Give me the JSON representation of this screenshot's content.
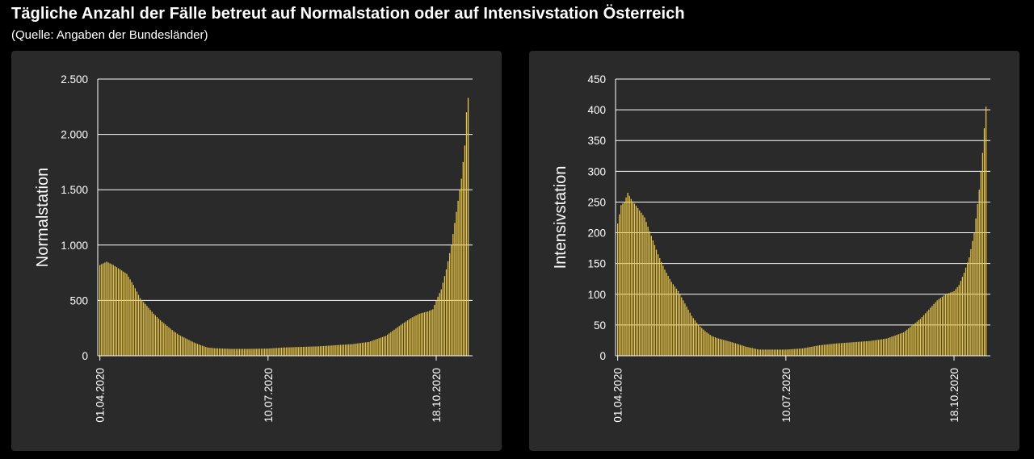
{
  "header": {
    "title": "Tägliche Anzahl der Fälle betreut auf Normalstation oder auf Intensivstation Österreich",
    "subtitle": "(Quelle: Angaben der Bundesländer)"
  },
  "colors": {
    "background": "#000000",
    "panel": "#2a2a2a",
    "bar": "#e8c547",
    "text": "#ffffff"
  },
  "chart_data": [
    {
      "type": "bar",
      "ylabel": "Normalstation",
      "xlabel": "",
      "x_start": "01.04.2020",
      "x_end": "06.11.2020",
      "ylim": [
        0,
        2500
      ],
      "yticks": [
        0,
        500,
        1000,
        1500,
        2000,
        2500
      ],
      "ytick_labels": [
        "0",
        "500",
        "1.000",
        "1.500",
        "2.000",
        "2.500"
      ],
      "xticks": [
        "01.04.2020",
        "10.07.2020",
        "18.10.2020"
      ],
      "grid": "horizontal",
      "anchors": [
        [
          "01.04.2020",
          820
        ],
        [
          "05.04.2020",
          850
        ],
        [
          "09.04.2020",
          820
        ],
        [
          "13.04.2020",
          780
        ],
        [
          "17.04.2020",
          740
        ],
        [
          "21.04.2020",
          640
        ],
        [
          "25.04.2020",
          520
        ],
        [
          "29.04.2020",
          450
        ],
        [
          "03.05.2020",
          380
        ],
        [
          "07.05.2020",
          320
        ],
        [
          "11.05.2020",
          270
        ],
        [
          "15.05.2020",
          220
        ],
        [
          "19.05.2020",
          180
        ],
        [
          "23.05.2020",
          150
        ],
        [
          "27.05.2020",
          120
        ],
        [
          "31.05.2020",
          95
        ],
        [
          "04.06.2020",
          75
        ],
        [
          "08.06.2020",
          68
        ],
        [
          "18.06.2020",
          62
        ],
        [
          "28.06.2020",
          62
        ],
        [
          "10.07.2020",
          65
        ],
        [
          "20.07.2020",
          75
        ],
        [
          "30.07.2020",
          80
        ],
        [
          "09.08.2020",
          85
        ],
        [
          "19.08.2020",
          95
        ],
        [
          "29.08.2020",
          105
        ],
        [
          "08.09.2020",
          125
        ],
        [
          "18.09.2020",
          180
        ],
        [
          "28.09.2020",
          290
        ],
        [
          "03.10.2020",
          340
        ],
        [
          "08.10.2020",
          380
        ],
        [
          "13.10.2020",
          400
        ],
        [
          "16.10.2020",
          420
        ],
        [
          "18.10.2020",
          500
        ],
        [
          "21.10.2020",
          600
        ],
        [
          "24.10.2020",
          780
        ],
        [
          "27.10.2020",
          1000
        ],
        [
          "30.10.2020",
          1300
        ],
        [
          "02.11.2020",
          1600
        ],
        [
          "04.11.2020",
          1900
        ],
        [
          "05.11.2020",
          2200
        ],
        [
          "06.11.2020",
          2330
        ]
      ]
    },
    {
      "type": "bar",
      "ylabel": "Intensivstation",
      "xlabel": "",
      "x_start": "01.04.2020",
      "x_end": "06.11.2020",
      "ylim": [
        0,
        450
      ],
      "yticks": [
        0,
        50,
        100,
        150,
        200,
        250,
        300,
        350,
        400,
        450
      ],
      "ytick_labels": [
        "0",
        "50",
        "100",
        "150",
        "200",
        "250",
        "300",
        "350",
        "400",
        "450"
      ],
      "xticks": [
        "01.04.2020",
        "10.07.2020",
        "18.10.2020"
      ],
      "grid": "horizontal",
      "anchors": [
        [
          "01.04.2020",
          215
        ],
        [
          "03.04.2020",
          245
        ],
        [
          "05.04.2020",
          250
        ],
        [
          "07.04.2020",
          265
        ],
        [
          "09.04.2020",
          255
        ],
        [
          "13.04.2020",
          240
        ],
        [
          "17.04.2020",
          225
        ],
        [
          "21.04.2020",
          195
        ],
        [
          "25.04.2020",
          165
        ],
        [
          "29.04.2020",
          140
        ],
        [
          "03.05.2020",
          120
        ],
        [
          "07.05.2020",
          105
        ],
        [
          "11.05.2020",
          85
        ],
        [
          "15.05.2020",
          65
        ],
        [
          "19.05.2020",
          50
        ],
        [
          "23.05.2020",
          40
        ],
        [
          "27.05.2020",
          32
        ],
        [
          "31.05.2020",
          28
        ],
        [
          "08.06.2020",
          22
        ],
        [
          "16.06.2020",
          15
        ],
        [
          "24.06.2020",
          10
        ],
        [
          "02.07.2020",
          10
        ],
        [
          "10.07.2020",
          10
        ],
        [
          "20.07.2020",
          12
        ],
        [
          "30.07.2020",
          17
        ],
        [
          "09.08.2020",
          20
        ],
        [
          "19.08.2020",
          22
        ],
        [
          "29.08.2020",
          24
        ],
        [
          "08.09.2020",
          28
        ],
        [
          "18.09.2020",
          38
        ],
        [
          "28.09.2020",
          60
        ],
        [
          "03.10.2020",
          75
        ],
        [
          "08.10.2020",
          90
        ],
        [
          "13.10.2020",
          100
        ],
        [
          "18.10.2020",
          105
        ],
        [
          "21.10.2020",
          115
        ],
        [
          "24.10.2020",
          135
        ],
        [
          "27.10.2020",
          160
        ],
        [
          "30.10.2020",
          200
        ],
        [
          "02.11.2020",
          270
        ],
        [
          "04.11.2020",
          330
        ],
        [
          "05.11.2020",
          370
        ],
        [
          "06.11.2020",
          405
        ]
      ]
    }
  ]
}
